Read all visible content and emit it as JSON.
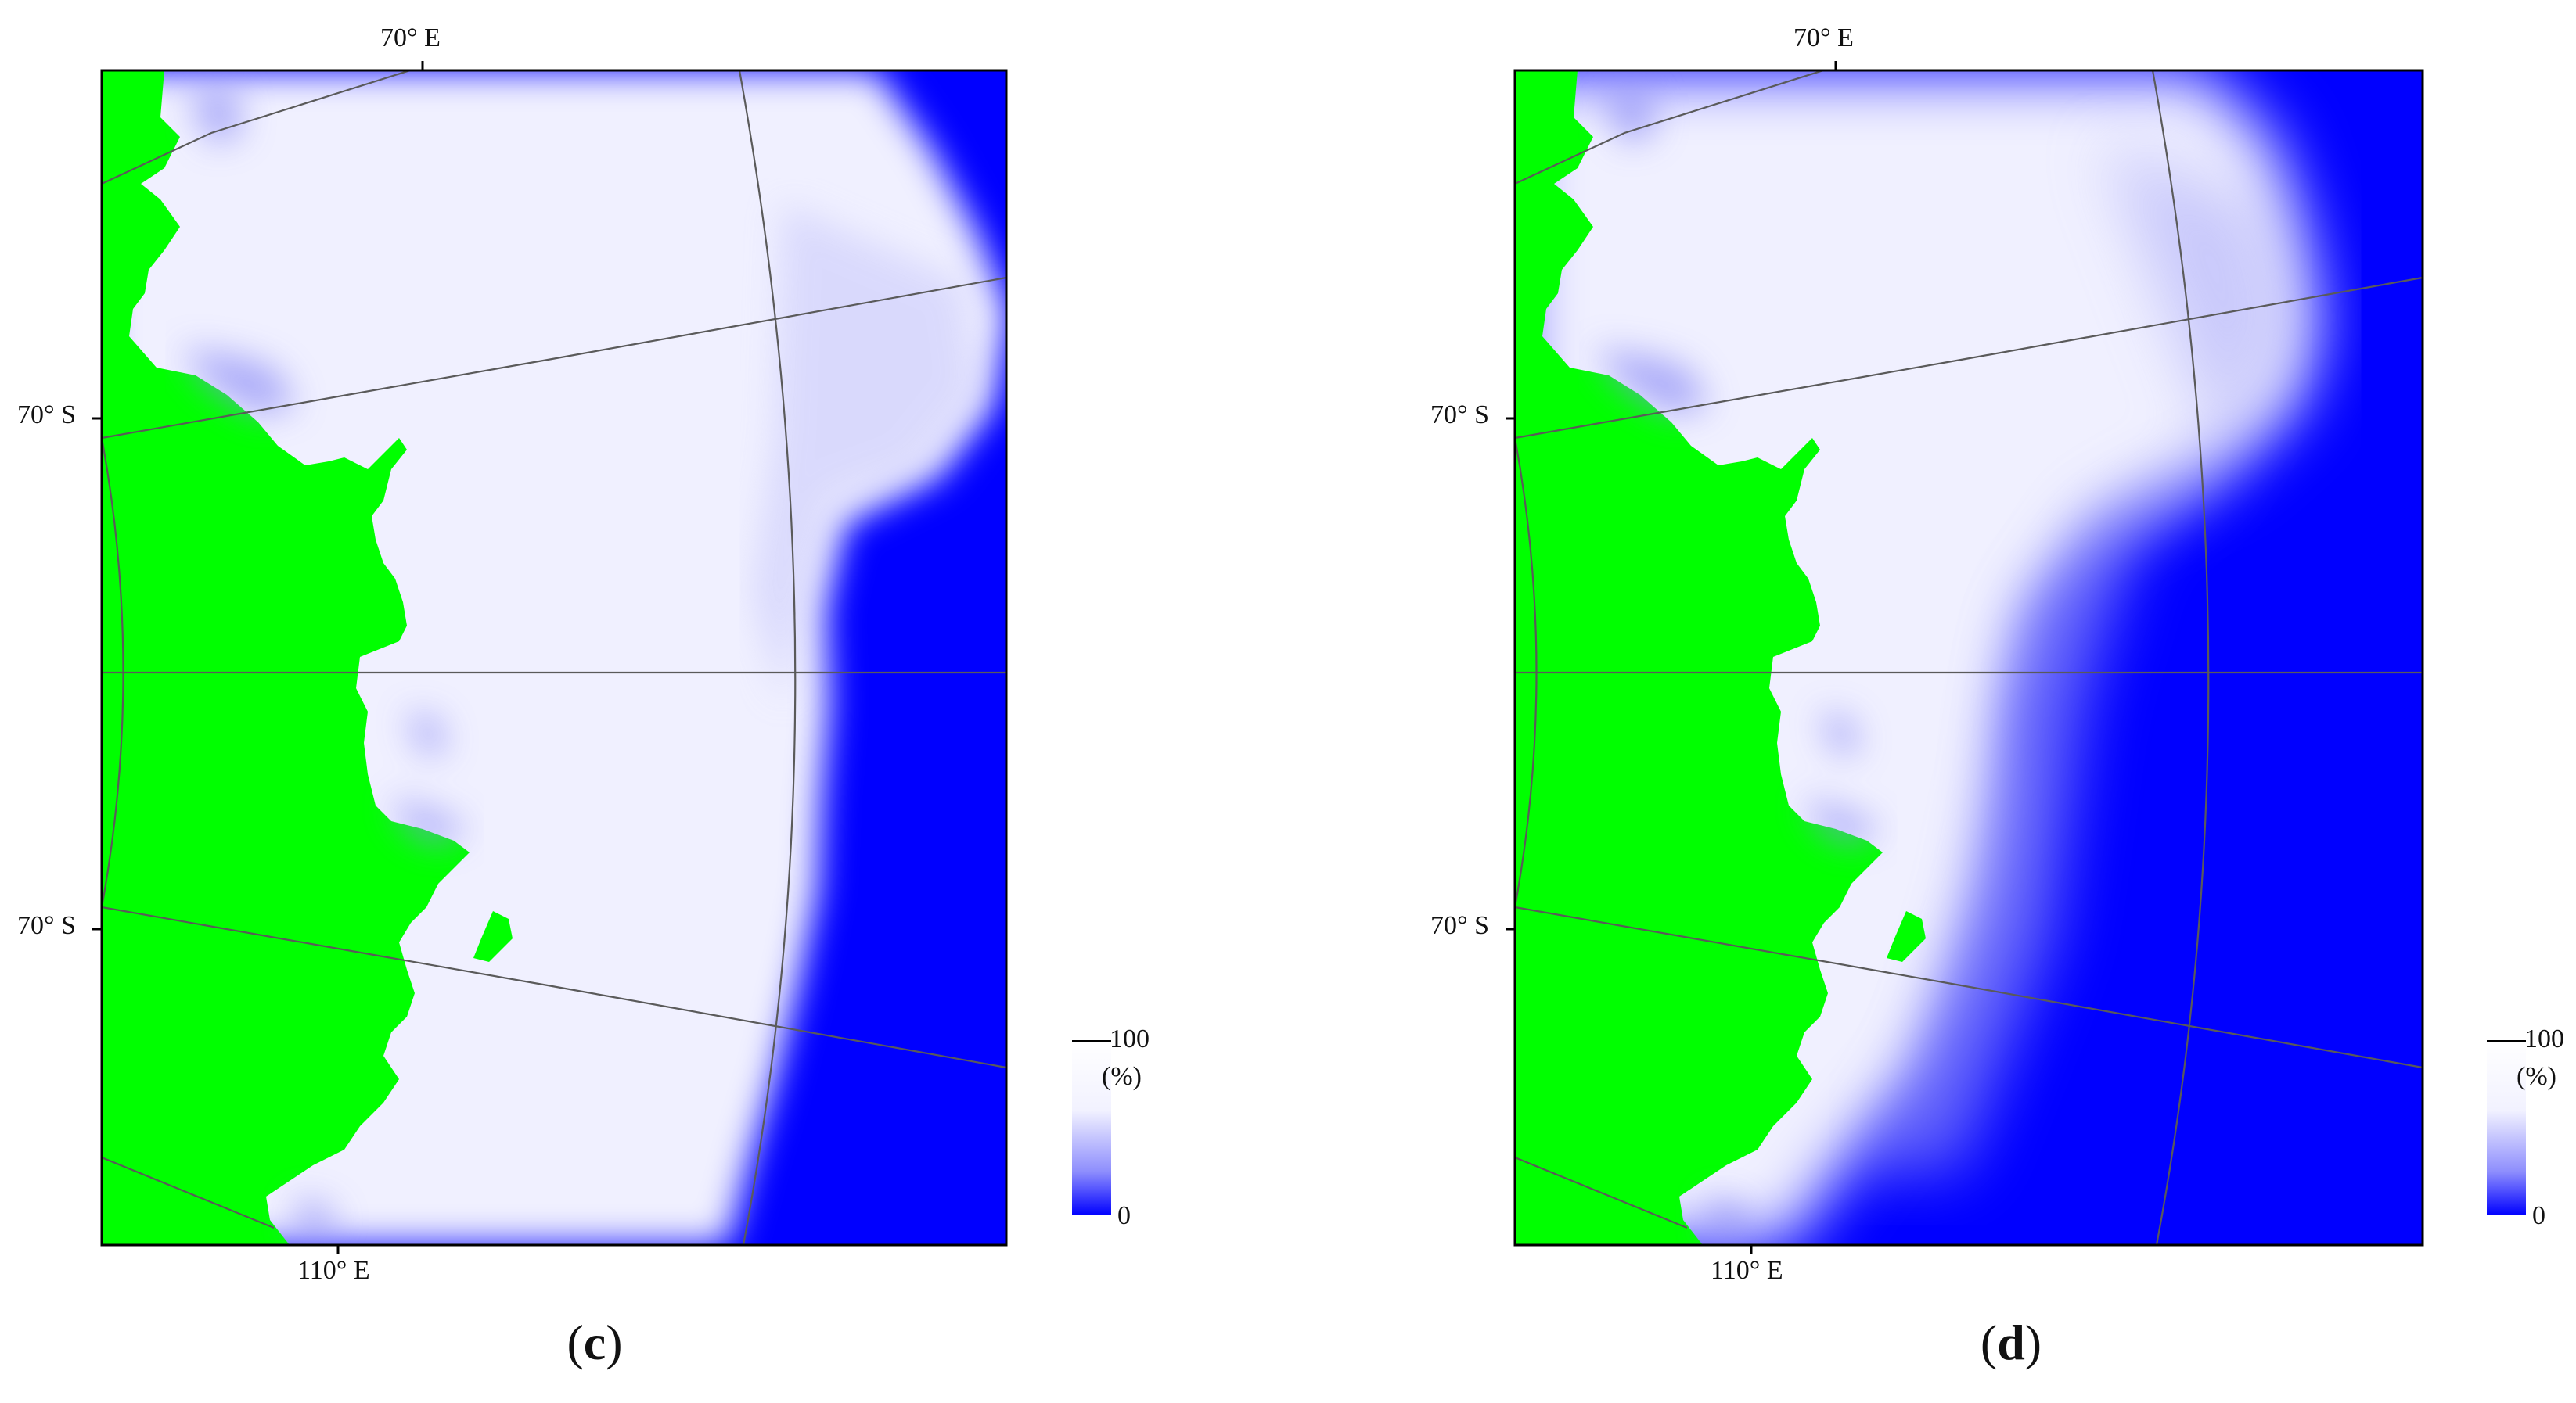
{
  "figure": {
    "panels": [
      {
        "id": "c",
        "caption_open": "(",
        "caption_letter": "c",
        "caption_close": ")",
        "lon_top_label": "70° E",
        "lon_bottom_label": "110° E",
        "lat_label_upper": "70° S",
        "lat_label_lower": "70° S",
        "legend": {
          "max_label": "100",
          "unit_label": "(%)",
          "min_label": "0"
        }
      },
      {
        "id": "d",
        "caption_open": "(",
        "caption_letter": "d",
        "caption_close": ")",
        "lon_top_label": "70° E",
        "lon_bottom_label": "110° E",
        "lat_label_upper": "70° S",
        "lat_label_lower": "70° S",
        "legend": {
          "max_label": "100",
          "unit_label": "(%)",
          "min_label": "0"
        }
      }
    ],
    "colors": {
      "land": "#00ff00",
      "open_water": "#0000ff",
      "high_concentration": "#ffffff",
      "graticule": "#555555",
      "frame": "#000000"
    },
    "colormap": {
      "min": 0,
      "max": 100,
      "unit": "%"
    }
  }
}
